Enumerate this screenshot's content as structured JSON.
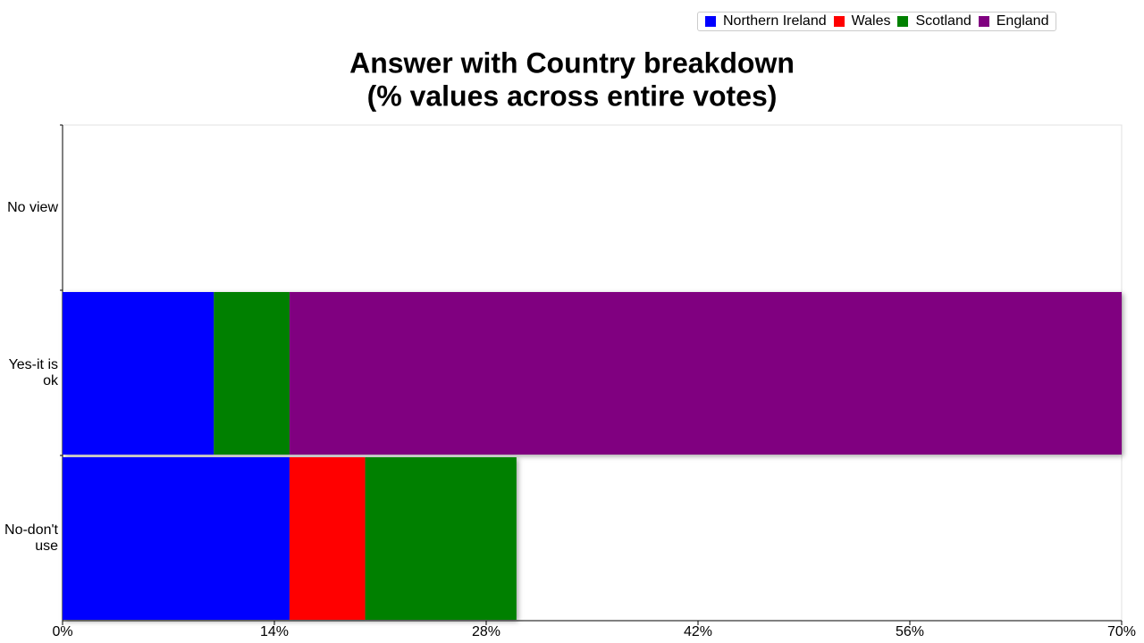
{
  "chart_data": {
    "type": "stacked-bar-horizontal",
    "title": "Answer with Country breakdown",
    "subtitle": "(% values across entire votes)",
    "categories": [
      "No view",
      "Yes-it is ok",
      "No-don't use"
    ],
    "series": [
      {
        "name": "Northern Ireland",
        "color": "#0000ff",
        "values": [
          0,
          10,
          15
        ]
      },
      {
        "name": "Wales",
        "color": "#ff0000",
        "values": [
          0,
          0,
          5
        ]
      },
      {
        "name": "Scotland",
        "color": "#008000",
        "values": [
          0,
          5,
          10
        ]
      },
      {
        "name": "England",
        "color": "#800080",
        "values": [
          0,
          55,
          0
        ]
      }
    ],
    "xlim": [
      0,
      70
    ],
    "xticks": [
      {
        "value": 0,
        "label": "0%"
      },
      {
        "value": 14,
        "label": "14%"
      },
      {
        "value": 28,
        "label": "28%"
      },
      {
        "value": 42,
        "label": "42%"
      },
      {
        "value": 56,
        "label": "56%"
      },
      {
        "value": 70,
        "label": "70%"
      }
    ],
    "legend": "top"
  }
}
